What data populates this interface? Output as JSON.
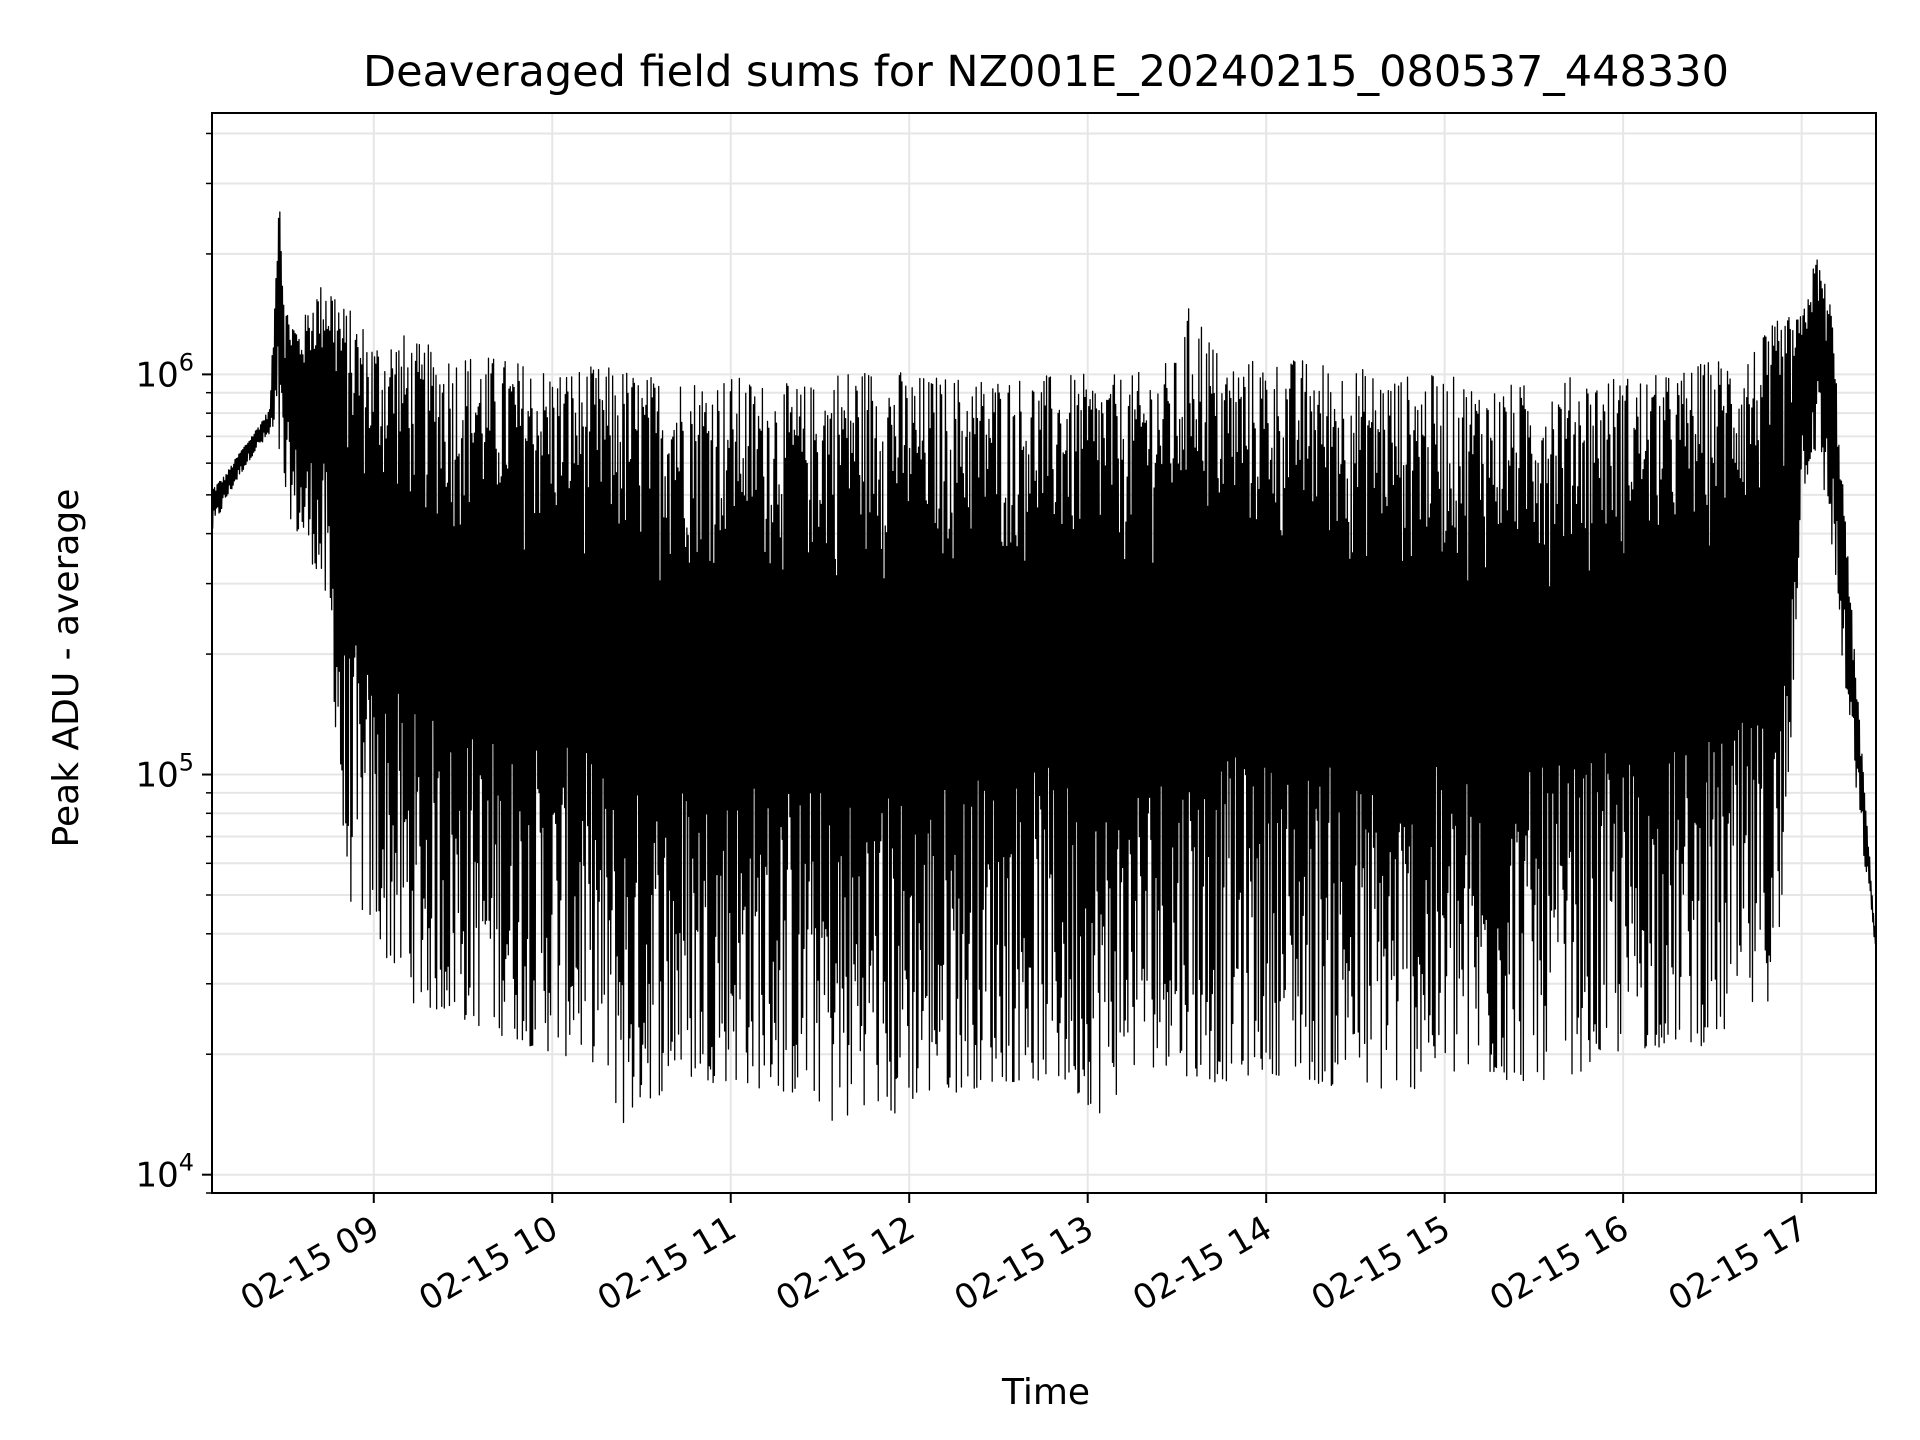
{
  "chart_data": {
    "type": "line",
    "title": "Deaveraged field sums for NZ001E_20240215_080537_448330",
    "xlabel": "Time",
    "ylabel": "Peak ADU - average",
    "yscale": "log",
    "ylim": [
      9000,
      4500000
    ],
    "xlim": [
      "2024-02-15 08:05:37",
      "2024-02-15 17:25:00"
    ],
    "x_tick_labels": [
      "02-15 09",
      "02-15 10",
      "02-15 11",
      "02-15 12",
      "02-15 13",
      "02-15 14",
      "02-15 15",
      "02-15 16",
      "02-15 17"
    ],
    "x_ticks": [
      "2024-02-15 09:00",
      "2024-02-15 10:00",
      "2024-02-15 11:00",
      "2024-02-15 12:00",
      "2024-02-15 13:00",
      "2024-02-15 14:00",
      "2024-02-15 15:00",
      "2024-02-15 16:00",
      "2024-02-15 17:00"
    ],
    "y_ticks": [
      {
        "value": 10000,
        "base": "10",
        "exp": "4"
      },
      {
        "value": 100000,
        "base": "10",
        "exp": "5"
      },
      {
        "value": 1000000,
        "base": "10",
        "exp": "6"
      }
    ],
    "grid": true,
    "legend": "none",
    "series": [
      {
        "color": "#000000",
        "x": [
          "2024-02-15 08:05:37",
          "2024-02-15 08:10",
          "2024-02-15 08:15",
          "2024-02-15 08:20",
          "2024-02-15 08:25",
          "2024-02-15 08:27",
          "2024-02-15 08:28",
          "2024-02-15 08:30",
          "2024-02-15 08:35",
          "2024-02-15 08:40",
          "2024-02-15 08:44",
          "2024-02-15 08:45",
          "2024-02-15 08:48",
          "2024-02-15 08:50",
          "2024-02-15 08:55",
          "2024-02-15 09:00",
          "2024-02-15 09:08",
          "2024-02-15 09:15",
          "2024-02-15 09:30",
          "2024-02-15 09:45",
          "2024-02-15 10:00",
          "2024-02-15 10:15",
          "2024-02-15 10:25",
          "2024-02-15 10:30",
          "2024-02-15 10:45",
          "2024-02-15 11:00",
          "2024-02-15 11:15",
          "2024-02-15 11:30",
          "2024-02-15 11:36",
          "2024-02-15 11:45",
          "2024-02-15 11:55",
          "2024-02-15 12:00",
          "2024-02-15 12:15",
          "2024-02-15 12:30",
          "2024-02-15 12:45",
          "2024-02-15 13:00",
          "2024-02-15 13:05",
          "2024-02-15 13:15",
          "2024-02-15 13:30",
          "2024-02-15 13:35",
          "2024-02-15 13:45",
          "2024-02-15 14:00",
          "2024-02-15 14:15",
          "2024-02-15 14:30",
          "2024-02-15 14:45",
          "2024-02-15 15:00",
          "2024-02-15 15:15",
          "2024-02-15 15:30",
          "2024-02-15 15:45",
          "2024-02-15 16:00",
          "2024-02-15 16:15",
          "2024-02-15 16:30",
          "2024-02-15 16:45",
          "2024-02-15 16:53",
          "2024-02-15 17:00",
          "2024-02-15 17:05",
          "2024-02-15 17:10",
          "2024-02-15 17:15",
          "2024-02-15 17:20",
          "2024-02-15 17:25"
        ],
        "upper": [
          520000,
          560000,
          640000,
          720000,
          820000,
          1700000,
          3600000,
          1500000,
          1300000,
          1600000,
          1750000,
          1750000,
          1650000,
          1500000,
          1400000,
          1250000,
          1300000,
          1200000,
          1150000,
          1100000,
          1050000,
          1050000,
          1050000,
          1000000,
          1000000,
          1000000,
          950000,
          950000,
          1050000,
          1050000,
          1050000,
          1000000,
          1000000,
          1000000,
          1000000,
          1000000,
          1000000,
          1000000,
          1100000,
          1600000,
          1100000,
          1100000,
          1100000,
          1050000,
          1000000,
          1000000,
          950000,
          950000,
          1000000,
          1000000,
          1000000,
          1100000,
          1200000,
          1400000,
          1400000,
          2000000,
          1500000,
          400000,
          120000,
          38000
        ],
        "lower": [
          400000,
          480000,
          560000,
          640000,
          700000,
          650000,
          600000,
          480000,
          380000,
          330000,
          250000,
          200000,
          110000,
          50000,
          45000,
          40000,
          30000,
          26000,
          24000,
          22000,
          20000,
          19000,
          12500,
          15000,
          17000,
          17000,
          16000,
          15000,
          12500,
          15000,
          13500,
          15000,
          16000,
          17000,
          17000,
          15000,
          14000,
          18000,
          19000,
          17000,
          17000,
          18000,
          17000,
          16000,
          16000,
          17000,
          17000,
          17000,
          18000,
          20000,
          21000,
          21000,
          25000,
          30000,
          500000,
          650000,
          380000,
          150000,
          70000,
          36000
        ]
      }
    ]
  }
}
